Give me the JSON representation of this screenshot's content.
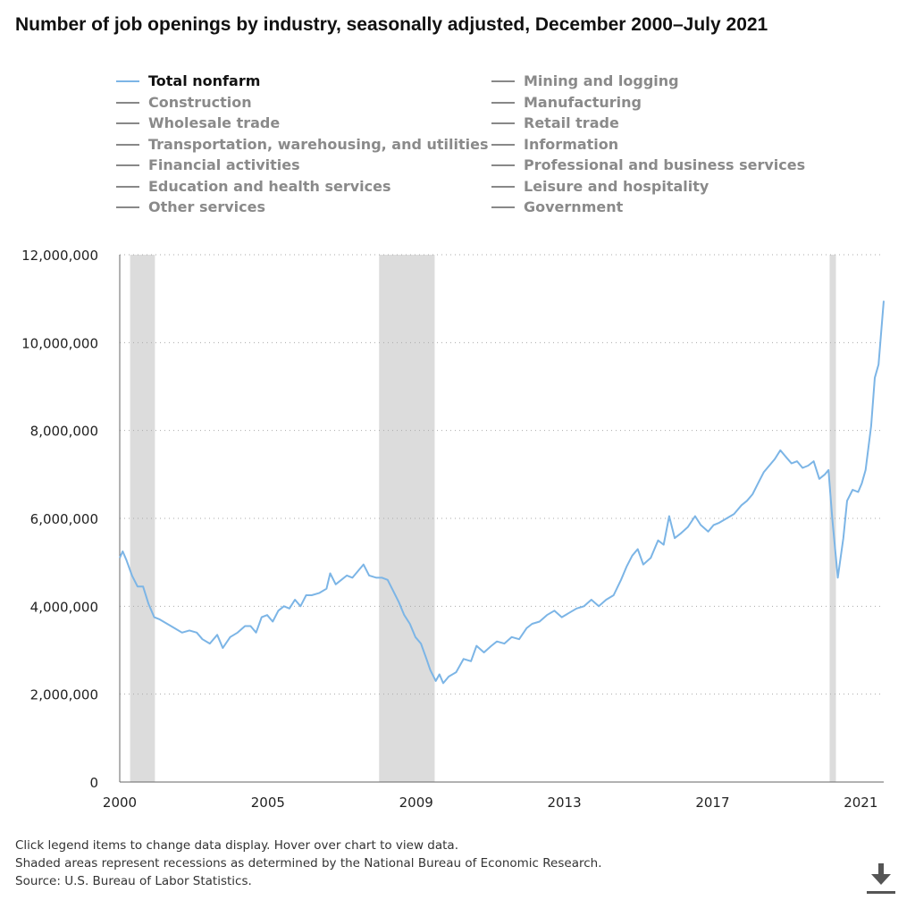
{
  "title": "Number of job openings by industry, seasonally adjusted, December 2000–July 2021",
  "legend": [
    {
      "label": "Total nonfarm",
      "active": true
    },
    {
      "label": "Mining and logging",
      "active": false
    },
    {
      "label": "Construction",
      "active": false
    },
    {
      "label": "Manufacturing",
      "active": false
    },
    {
      "label": "Wholesale trade",
      "active": false
    },
    {
      "label": "Retail trade",
      "active": false
    },
    {
      "label": "Transportation, warehousing, and utilities",
      "active": false
    },
    {
      "label": "Information",
      "active": false
    },
    {
      "label": "Financial activities",
      "active": false
    },
    {
      "label": "Professional and business services",
      "active": false
    },
    {
      "label": "Education and health services",
      "active": false
    },
    {
      "label": "Leisure and hospitality",
      "active": false
    },
    {
      "label": "Other services",
      "active": false
    },
    {
      "label": "Government",
      "active": false
    }
  ],
  "notes": {
    "line1": "Click legend items to change data display. Hover over chart to view data.",
    "line2": "Shaded areas represent recessions as determined by the National Bureau of Economic Research.",
    "line3": "Source: U.S. Bureau of Labor Statistics."
  },
  "colors": {
    "series": "#7cb5e6",
    "recession": "#dcdcdc",
    "grid": "#aaaaaa",
    "axis": "#666666",
    "inactive": "#888888"
  },
  "chart_data": {
    "type": "line",
    "title": "Number of job openings by industry, seasonally adjusted, December 2000–July 2021",
    "xlabel": "",
    "ylabel": "",
    "ylim": [
      0,
      12000000
    ],
    "xlim": [
      2000.92,
      2021.54
    ],
    "grid": true,
    "yticks": [
      0,
      2000000,
      4000000,
      6000000,
      8000000,
      10000000,
      12000000
    ],
    "ytick_labels": [
      "0",
      "2,000,000",
      "4,000,000",
      "6,000,000",
      "8,000,000",
      "10,000,000",
      "12,000,000"
    ],
    "xticks": [
      2000.92,
      2004.92,
      2008.92,
      2012.92,
      2016.92,
      2020.92
    ],
    "xtick_labels": [
      "2000",
      "2005",
      "2009",
      "2013",
      "2017",
      "2021"
    ],
    "recessions": [
      [
        2001.2,
        2001.87
      ],
      [
        2007.92,
        2009.42
      ],
      [
        2020.08,
        2020.25
      ]
    ],
    "series": [
      {
        "name": "Total nonfarm",
        "points": [
          [
            2000.92,
            5100000
          ],
          [
            2001.0,
            5250000
          ],
          [
            2001.1,
            5050000
          ],
          [
            2001.25,
            4700000
          ],
          [
            2001.4,
            4450000
          ],
          [
            2001.55,
            4450000
          ],
          [
            2001.7,
            4050000
          ],
          [
            2001.85,
            3750000
          ],
          [
            2002.0,
            3700000
          ],
          [
            2002.2,
            3600000
          ],
          [
            2002.4,
            3500000
          ],
          [
            2002.6,
            3400000
          ],
          [
            2002.8,
            3450000
          ],
          [
            2003.0,
            3400000
          ],
          [
            2003.15,
            3250000
          ],
          [
            2003.35,
            3150000
          ],
          [
            2003.55,
            3350000
          ],
          [
            2003.7,
            3050000
          ],
          [
            2003.9,
            3300000
          ],
          [
            2004.1,
            3400000
          ],
          [
            2004.3,
            3550000
          ],
          [
            2004.45,
            3550000
          ],
          [
            2004.6,
            3400000
          ],
          [
            2004.75,
            3750000
          ],
          [
            2004.9,
            3800000
          ],
          [
            2005.05,
            3650000
          ],
          [
            2005.2,
            3900000
          ],
          [
            2005.35,
            4000000
          ],
          [
            2005.5,
            3950000
          ],
          [
            2005.65,
            4150000
          ],
          [
            2005.8,
            4000000
          ],
          [
            2005.95,
            4250000
          ],
          [
            2006.1,
            4250000
          ],
          [
            2006.3,
            4300000
          ],
          [
            2006.5,
            4400000
          ],
          [
            2006.6,
            4750000
          ],
          [
            2006.75,
            4500000
          ],
          [
            2006.9,
            4600000
          ],
          [
            2007.05,
            4700000
          ],
          [
            2007.2,
            4650000
          ],
          [
            2007.35,
            4800000
          ],
          [
            2007.5,
            4950000
          ],
          [
            2007.65,
            4700000
          ],
          [
            2007.85,
            4650000
          ],
          [
            2008.0,
            4650000
          ],
          [
            2008.15,
            4600000
          ],
          [
            2008.3,
            4350000
          ],
          [
            2008.45,
            4100000
          ],
          [
            2008.6,
            3800000
          ],
          [
            2008.75,
            3600000
          ],
          [
            2008.9,
            3300000
          ],
          [
            2009.05,
            3150000
          ],
          [
            2009.2,
            2800000
          ],
          [
            2009.3,
            2550000
          ],
          [
            2009.45,
            2300000
          ],
          [
            2009.55,
            2450000
          ],
          [
            2009.65,
            2250000
          ],
          [
            2009.8,
            2400000
          ],
          [
            2010.0,
            2500000
          ],
          [
            2010.2,
            2800000
          ],
          [
            2010.4,
            2750000
          ],
          [
            2010.55,
            3100000
          ],
          [
            2010.75,
            2950000
          ],
          [
            2010.95,
            3100000
          ],
          [
            2011.1,
            3200000
          ],
          [
            2011.3,
            3150000
          ],
          [
            2011.5,
            3300000
          ],
          [
            2011.7,
            3250000
          ],
          [
            2011.9,
            3500000
          ],
          [
            2012.05,
            3600000
          ],
          [
            2012.25,
            3650000
          ],
          [
            2012.45,
            3800000
          ],
          [
            2012.65,
            3900000
          ],
          [
            2012.85,
            3750000
          ],
          [
            2013.05,
            3850000
          ],
          [
            2013.25,
            3950000
          ],
          [
            2013.45,
            4000000
          ],
          [
            2013.65,
            4150000
          ],
          [
            2013.85,
            4000000
          ],
          [
            2014.05,
            4150000
          ],
          [
            2014.25,
            4250000
          ],
          [
            2014.45,
            4600000
          ],
          [
            2014.6,
            4900000
          ],
          [
            2014.75,
            5150000
          ],
          [
            2014.9,
            5300000
          ],
          [
            2015.05,
            4950000
          ],
          [
            2015.25,
            5100000
          ],
          [
            2015.45,
            5500000
          ],
          [
            2015.6,
            5400000
          ],
          [
            2015.75,
            6050000
          ],
          [
            2015.9,
            5550000
          ],
          [
            2016.05,
            5650000
          ],
          [
            2016.25,
            5800000
          ],
          [
            2016.45,
            6050000
          ],
          [
            2016.6,
            5850000
          ],
          [
            2016.8,
            5700000
          ],
          [
            2016.95,
            5850000
          ],
          [
            2017.1,
            5900000
          ],
          [
            2017.3,
            6000000
          ],
          [
            2017.5,
            6100000
          ],
          [
            2017.7,
            6300000
          ],
          [
            2017.85,
            6400000
          ],
          [
            2018.0,
            6550000
          ],
          [
            2018.15,
            6800000
          ],
          [
            2018.3,
            7050000
          ],
          [
            2018.45,
            7200000
          ],
          [
            2018.6,
            7350000
          ],
          [
            2018.75,
            7550000
          ],
          [
            2018.9,
            7400000
          ],
          [
            2019.05,
            7250000
          ],
          [
            2019.2,
            7300000
          ],
          [
            2019.35,
            7150000
          ],
          [
            2019.5,
            7200000
          ],
          [
            2019.65,
            7300000
          ],
          [
            2019.8,
            6900000
          ],
          [
            2019.95,
            7000000
          ],
          [
            2020.05,
            7100000
          ],
          [
            2020.15,
            6000000
          ],
          [
            2020.3,
            4650000
          ],
          [
            2020.45,
            5550000
          ],
          [
            2020.55,
            6400000
          ],
          [
            2020.7,
            6650000
          ],
          [
            2020.85,
            6600000
          ],
          [
            2020.95,
            6800000
          ],
          [
            2021.05,
            7100000
          ],
          [
            2021.2,
            8100000
          ],
          [
            2021.3,
            9200000
          ],
          [
            2021.4,
            9500000
          ],
          [
            2021.54,
            10950000
          ]
        ]
      }
    ]
  }
}
